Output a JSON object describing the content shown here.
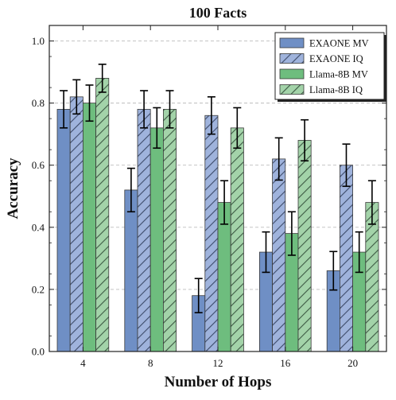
{
  "chart_data": {
    "type": "bar",
    "title": "100 Facts",
    "xlabel": "Number of Hops",
    "ylabel": "Accuracy",
    "categories": [
      "4",
      "8",
      "12",
      "16",
      "20"
    ],
    "ylim": [
      0.0,
      1.05
    ],
    "yticks": [
      "0.0",
      "0.2",
      "0.4",
      "0.6",
      "0.8",
      "1.0"
    ],
    "grid": true,
    "legend_position": "top-right",
    "series": [
      {
        "name": "EXAONE MV",
        "values": [
          0.78,
          0.52,
          0.18,
          0.32,
          0.26
        ],
        "errors": [
          0.06,
          0.07,
          0.055,
          0.065,
          0.062
        ],
        "color": "#6f8fc5",
        "hatch": false
      },
      {
        "name": "EXAONE IQ",
        "values": [
          0.82,
          0.78,
          0.76,
          0.62,
          0.6
        ],
        "errors": [
          0.055,
          0.06,
          0.06,
          0.068,
          0.068
        ],
        "color": "#9fb3dc",
        "hatch": true
      },
      {
        "name": "Llama-8B MV",
        "values": [
          0.8,
          0.72,
          0.48,
          0.38,
          0.32
        ],
        "errors": [
          0.058,
          0.065,
          0.07,
          0.07,
          0.065
        ],
        "color": "#6ebd7e",
        "hatch": false
      },
      {
        "name": "Llama-8B IQ",
        "values": [
          0.88,
          0.78,
          0.72,
          0.68,
          0.48
        ],
        "errors": [
          0.045,
          0.06,
          0.065,
          0.066,
          0.07
        ],
        "color": "#a3d3a9",
        "hatch": true
      }
    ]
  }
}
